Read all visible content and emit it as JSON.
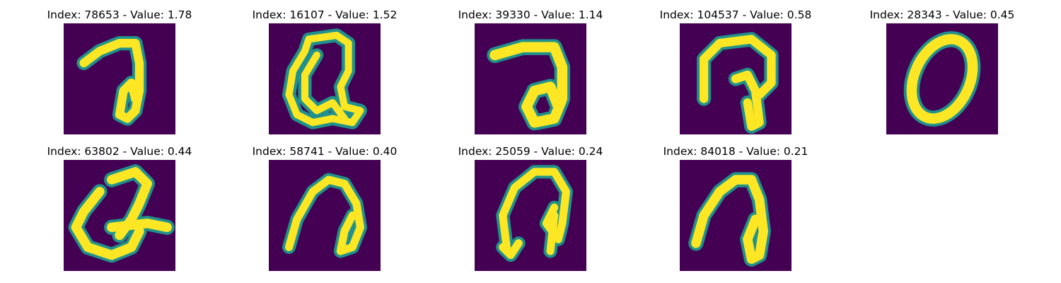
{
  "figure": {
    "panels": [
      {
        "index": "78653",
        "value": "1.78",
        "title": "Index: 78653 - Value: 1.78"
      },
      {
        "index": "16107",
        "value": "1.52",
        "title": "Index: 16107 - Value: 1.52"
      },
      {
        "index": "39330",
        "value": "1.14",
        "title": "Index: 39330 - Value: 1.14"
      },
      {
        "index": "104537",
        "value": "0.58",
        "title": "Index: 104537 - Value: 0.58"
      },
      {
        "index": "28343",
        "value": "0.45",
        "title": "Index: 28343 - Value: 0.45"
      },
      {
        "index": "63802",
        "value": "0.44",
        "title": "Index: 63802 - Value: 0.44"
      },
      {
        "index": "58741",
        "value": "0.40",
        "title": "Index: 58741 - Value: 0.40"
      },
      {
        "index": "25059",
        "value": "0.24",
        "title": "Index: 25059 - Value: 0.24"
      },
      {
        "index": "84018",
        "value": "0.21",
        "title": "Index: 84018 - Value: 0.21"
      }
    ],
    "colors": {
      "background": "#440154",
      "stroke": "#fde725",
      "edge": "#21918c"
    }
  }
}
